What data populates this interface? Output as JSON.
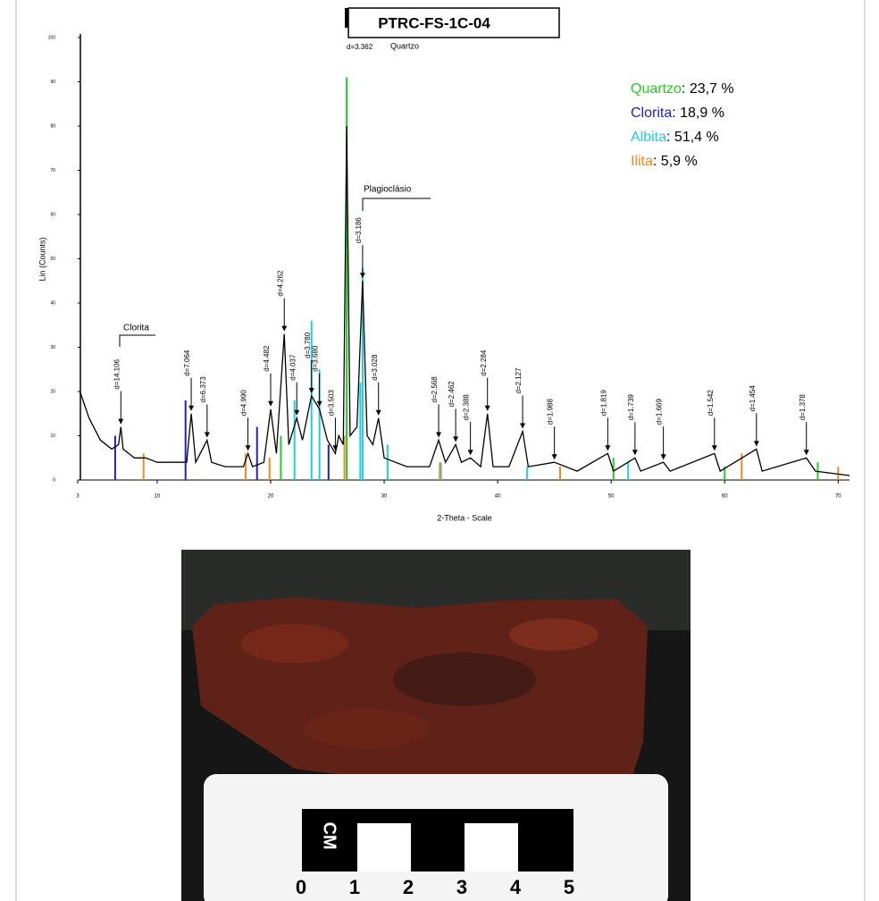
{
  "chart_data": {
    "type": "line",
    "title": "PTRC-FS-1C-04",
    "x_label": "2-Theta - Scale",
    "y_label": "Lin (Counts)",
    "xlim": [
      3,
      71
    ],
    "xticks": [
      3,
      10,
      20,
      30,
      40,
      50,
      60,
      70
    ],
    "ylim": [
      0,
      100
    ],
    "yticks": [
      0,
      10,
      20,
      30,
      40,
      50,
      60,
      70,
      80,
      90,
      100
    ],
    "annotations": [
      "d=3.362",
      "Quartzo",
      "Clorita",
      "Plagioclásio"
    ],
    "profile": {
      "color": "#000000",
      "x": [
        3.2,
        4,
        5,
        6,
        6.6,
        6.8,
        7,
        8,
        9,
        10,
        11,
        12.6,
        13,
        13.4,
        14.4,
        14.8,
        16,
        17.6,
        18,
        18.4,
        19.4,
        20,
        20.5,
        21.2,
        21.6,
        22.3,
        22.8,
        23.6,
        24.3,
        25,
        25.7,
        26,
        26.4,
        26.7,
        27,
        27.6,
        28.1,
        28.5,
        29,
        29.5,
        30,
        32,
        34,
        34.8,
        35.4,
        36.3,
        36.8,
        37.6,
        38.5,
        39.1,
        39.6,
        41,
        42.2,
        42.7,
        45,
        47,
        49.7,
        50.2,
        52.1,
        52.6,
        54.6,
        55.2,
        59.1,
        59.6,
        62.8,
        63.3,
        67.2,
        68,
        71
      ],
      "values": [
        20,
        14,
        9,
        7,
        8,
        12,
        7,
        5,
        5,
        4,
        4,
        4,
        15,
        4,
        9,
        4,
        3,
        3,
        6,
        3,
        4,
        16,
        6,
        33,
        8,
        14,
        9,
        19,
        16,
        9,
        6,
        10,
        8,
        80,
        10,
        12,
        45,
        10,
        8,
        14,
        5,
        3,
        3,
        9,
        4,
        8,
        4,
        5,
        3,
        15,
        3,
        3,
        11,
        3,
        4,
        2,
        6,
        2,
        5,
        2,
        4,
        2,
        6,
        2,
        7,
        2,
        5,
        2,
        1
      ]
    },
    "series": [
      {
        "name": "Quartzo",
        "color": "#22cc22",
        "percent": 23.7,
        "percent_label": ": 23,7 %",
        "x": [
          20.9,
          26.7,
          50.2,
          60,
          68.2
        ],
        "values": [
          10,
          91,
          5,
          3,
          4
        ]
      },
      {
        "name": "Clorita",
        "color": "#2222bb",
        "percent": 18.9,
        "percent_label": ": 18,9 %",
        "x": [
          6.3,
          12.5,
          18.8,
          25.1,
          45.5
        ],
        "values": [
          10,
          18,
          12,
          8,
          3
        ]
      },
      {
        "name": "Albita",
        "color": "#22cce0",
        "percent": 51.4,
        "percent_label": ": 51,4 %",
        "x": [
          22.1,
          23.6,
          24.3,
          27.9,
          28.1,
          30.3,
          35,
          42.6,
          51.5
        ],
        "values": [
          18,
          36,
          25,
          22,
          48,
          8,
          4,
          3,
          4
        ]
      },
      {
        "name": "Ilita",
        "color": "#f08a20",
        "percent": 5.9,
        "percent_label": ": 5,9 %",
        "x": [
          8.8,
          17.8,
          19.9,
          26.5,
          34.9,
          45.5,
          61.5,
          70
        ],
        "values": [
          6,
          6,
          5,
          10,
          4,
          3,
          6,
          3
        ]
      }
    ],
    "peaks": [
      {
        "label": "d=14.106",
        "x": 6.8,
        "y": 12
      },
      {
        "label": "d=7.064",
        "x": 13,
        "y": 15
      },
      {
        "label": "d=6.373",
        "x": 14.4,
        "y": 9
      },
      {
        "label": "d=4.990",
        "x": 18,
        "y": 6
      },
      {
        "label": "d=4.482",
        "x": 20,
        "y": 16
      },
      {
        "label": "d=4.262",
        "x": 21.2,
        "y": 33
      },
      {
        "label": "d=4.037",
        "x": 22.3,
        "y": 14
      },
      {
        "label": "d=3.780",
        "x": 23.6,
        "y": 19
      },
      {
        "label": "d=3.680",
        "x": 24.3,
        "y": 16
      },
      {
        "label": "d=3.503",
        "x": 25.7,
        "y": 6
      },
      {
        "label": "d=3.186",
        "x": 28.1,
        "y": 45
      },
      {
        "label": "d=3.028",
        "x": 29.5,
        "y": 14
      },
      {
        "label": "d=2.568",
        "x": 34.8,
        "y": 9
      },
      {
        "label": "d=2.462",
        "x": 36.3,
        "y": 8
      },
      {
        "label": "d=2.388",
        "x": 37.6,
        "y": 5
      },
      {
        "label": "d=2.284",
        "x": 39.1,
        "y": 15
      },
      {
        "label": "d=2.127",
        "x": 42.2,
        "y": 11
      },
      {
        "label": "d=1.988",
        "x": 45,
        "y": 4
      },
      {
        "label": "d=1.819",
        "x": 49.7,
        "y": 6
      },
      {
        "label": "d=1.739",
        "x": 52.1,
        "y": 5
      },
      {
        "label": "d=1.669",
        "x": 54.6,
        "y": 4
      },
      {
        "label": "d=1.542",
        "x": 59.1,
        "y": 6
      },
      {
        "label": "d=1.454",
        "x": 62.8,
        "y": 7
      },
      {
        "label": "d=1.378",
        "x": 67.2,
        "y": 5
      }
    ]
  },
  "photo": {
    "scale_unit": "CM",
    "scale_numbers": [
      "0",
      "1",
      "2",
      "3",
      "4",
      "5"
    ]
  }
}
